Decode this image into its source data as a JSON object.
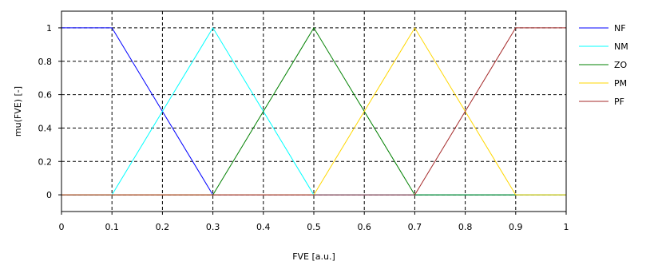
{
  "chart_data": {
    "type": "line",
    "title": "",
    "xlabel": "FVE [a.u.]",
    "ylabel": "mu(FVE) [-]",
    "xlim": [
      0,
      1
    ],
    "ylim": [
      -0.1,
      1.1
    ],
    "grid": true,
    "legend_position": "right",
    "x_ticks": [
      {
        "value": 0,
        "label": "0"
      },
      {
        "value": 0.1,
        "label": "0.1"
      },
      {
        "value": 0.2,
        "label": "0.2"
      },
      {
        "value": 0.3,
        "label": "0.3"
      },
      {
        "value": 0.4,
        "label": "0.4"
      },
      {
        "value": 0.5,
        "label": "0.5"
      },
      {
        "value": 0.6,
        "label": "0.6"
      },
      {
        "value": 0.7,
        "label": "0.7"
      },
      {
        "value": 0.8,
        "label": "0.8"
      },
      {
        "value": 0.9,
        "label": "0.9"
      },
      {
        "value": 1,
        "label": "1"
      }
    ],
    "y_ticks": [
      {
        "value": 0,
        "label": "0"
      },
      {
        "value": 0.2,
        "label": "0.2"
      },
      {
        "value": 0.4,
        "label": "0.4"
      },
      {
        "value": 0.6,
        "label": "0.6"
      },
      {
        "value": 0.8,
        "label": "0.8"
      },
      {
        "value": 1,
        "label": "1"
      }
    ],
    "series": [
      {
        "name": "NF",
        "color": "#0000ff",
        "x": [
          0,
          0.1,
          0.3,
          1
        ],
        "y": [
          1,
          1,
          0,
          0
        ]
      },
      {
        "name": "NM",
        "color": "#00ffff",
        "x": [
          0,
          0.1,
          0.3,
          0.5,
          1
        ],
        "y": [
          0,
          0,
          1,
          0,
          0
        ]
      },
      {
        "name": "ZO",
        "color": "#008000",
        "x": [
          0,
          0.3,
          0.5,
          0.7,
          1
        ],
        "y": [
          0,
          0,
          1,
          0,
          0
        ]
      },
      {
        "name": "PM",
        "color": "#ffd700",
        "x": [
          0,
          0.5,
          0.7,
          0.9,
          1
        ],
        "y": [
          0,
          0,
          1,
          0,
          0
        ]
      },
      {
        "name": "PF",
        "color": "#a52a2a",
        "x": [
          0,
          0.7,
          0.9,
          1
        ],
        "y": [
          0,
          0,
          1,
          1
        ]
      }
    ]
  }
}
